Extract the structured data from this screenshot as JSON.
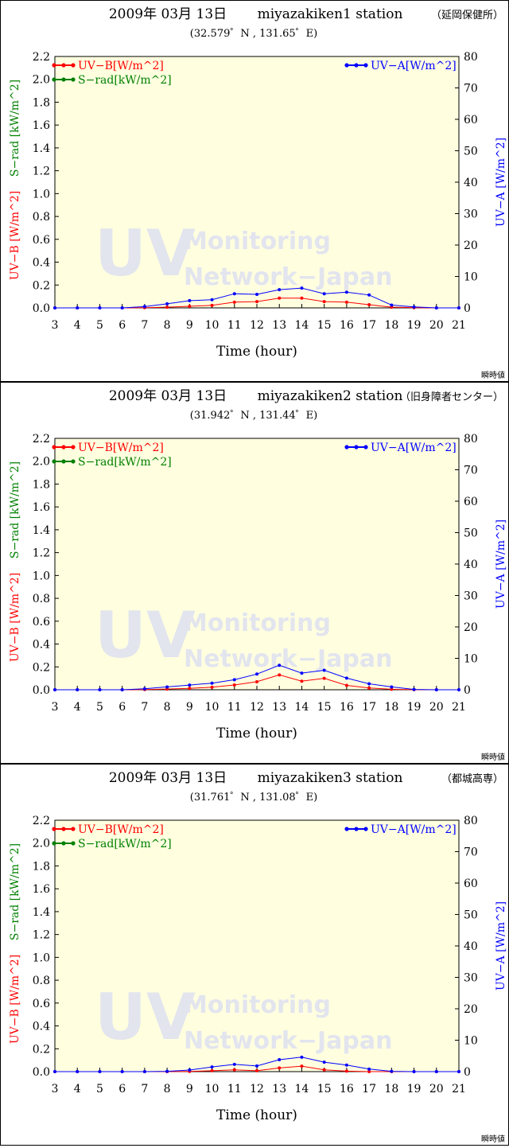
{
  "colors": {
    "plot_bg": "#ffffe0",
    "uvb": "#ff0000",
    "srad": "#008000",
    "uva": "#0000ff",
    "watermark": "#e2e4ee"
  },
  "chart_data": [
    {
      "type": "line",
      "title_date": "2009年 03月 13日",
      "title_station": "miyazakiken1 station",
      "title_place": "（延岡保健所）",
      "coords": "(32.579゜N , 131.65゜E)",
      "xlabel": "Time (hour)",
      "ylabel_left_uvb": "UV−B [W/m^2]",
      "ylabel_left_srad": "S−rad [kW/m^2]",
      "ylabel_right": "UV−A [W/m^2]",
      "x": [
        3,
        4,
        5,
        6,
        7,
        8,
        9,
        10,
        11,
        12,
        13,
        14,
        15,
        16,
        17,
        18,
        19,
        20,
        21
      ],
      "xlim": [
        3,
        21
      ],
      "ylim_left": [
        0,
        2.2
      ],
      "ylim_right": [
        0,
        80
      ],
      "left_ticks": [
        "0.0",
        "0.2",
        "0.4",
        "0.6",
        "0.8",
        "1.0",
        "1.2",
        "1.4",
        "1.6",
        "1.8",
        "2.0",
        "2.2"
      ],
      "right_ticks": [
        "0",
        "10",
        "20",
        "30",
        "40",
        "50",
        "60",
        "70",
        "80"
      ],
      "legend_uvb": "UV−B[W/m^2]",
      "legend_srad": "S−rad[kW/m^2]",
      "legend_uva": "UV−A[W/m^2]",
      "watermark_big": "UV",
      "watermark_line1": "Monitoring",
      "watermark_line2": "Network−Japan",
      "footnote": "瞬時値",
      "series": [
        {
          "name": "UV−B[W/m^2]",
          "axis": "left",
          "color": "#ff0000",
          "values": [
            0,
            0,
            0,
            0,
            0.002,
            0.006,
            0.014,
            0.022,
            0.05,
            0.055,
            0.085,
            0.085,
            0.055,
            0.05,
            0.028,
            0.006,
            0.002,
            0,
            0
          ]
        },
        {
          "name": "UV−A[W/m^2]",
          "axis": "right",
          "color": "#0000ff",
          "values": [
            0,
            0,
            0,
            0,
            0.4,
            1.3,
            2.3,
            2.6,
            4.5,
            4.3,
            5.8,
            6.3,
            4.5,
            5.0,
            4.1,
            0.9,
            0.3,
            0,
            0
          ]
        }
      ]
    },
    {
      "type": "line",
      "title_date": "2009年 03月 13日",
      "title_station": "miyazakiken2 station",
      "title_place": "（旧身障者センター）",
      "coords": "(31.942゜N , 131.44゜E)",
      "xlabel": "Time (hour)",
      "ylabel_left_uvb": "UV−B [W/m^2]",
      "ylabel_left_srad": "S−rad [kW/m^2]",
      "ylabel_right": "UV−A [W/m^2]",
      "x": [
        3,
        4,
        5,
        6,
        7,
        8,
        9,
        10,
        11,
        12,
        13,
        14,
        15,
        16,
        17,
        18,
        19,
        20,
        21
      ],
      "xlim": [
        3,
        21
      ],
      "ylim_left": [
        0,
        2.2
      ],
      "ylim_right": [
        0,
        80
      ],
      "left_ticks": [
        "0.0",
        "0.2",
        "0.4",
        "0.6",
        "0.8",
        "1.0",
        "1.2",
        "1.4",
        "1.6",
        "1.8",
        "2.0",
        "2.2"
      ],
      "right_ticks": [
        "0",
        "10",
        "20",
        "30",
        "40",
        "50",
        "60",
        "70",
        "80"
      ],
      "legend_uvb": "UV−B[W/m^2]",
      "legend_srad": "S−rad[kW/m^2]",
      "legend_uva": "UV−A[W/m^2]",
      "watermark_big": "UV",
      "watermark_line1": "Monitoring",
      "watermark_line2": "Network−Japan",
      "footnote": "瞬時値",
      "series": [
        {
          "name": "UV−B[W/m^2]",
          "axis": "left",
          "color": "#ff0000",
          "values": [
            0,
            0,
            0,
            0,
            0.002,
            0.006,
            0.012,
            0.022,
            0.042,
            0.07,
            0.13,
            0.075,
            0.1,
            0.038,
            0.015,
            0.004,
            0.001,
            0,
            0
          ]
        },
        {
          "name": "UV−A[W/m^2]",
          "axis": "right",
          "color": "#0000ff",
          "values": [
            0,
            0,
            0,
            0,
            0.3,
            0.9,
            1.5,
            2.1,
            3.2,
            5.0,
            7.8,
            5.3,
            6.2,
            3.7,
            1.9,
            0.9,
            0.1,
            0,
            0
          ]
        }
      ]
    },
    {
      "type": "line",
      "title_date": "2009年 03月 13日",
      "title_station": "miyazakiken3 station",
      "title_place": "（都城高専）",
      "coords": "(31.761゜N , 131.08゜E)",
      "xlabel": "Time (hour)",
      "ylabel_left_uvb": "UV−B [W/m^2]",
      "ylabel_left_srad": "S−rad [kW/m^2]",
      "ylabel_right": "UV−A [W/m^2]",
      "x": [
        3,
        4,
        5,
        6,
        7,
        8,
        9,
        10,
        11,
        12,
        13,
        14,
        15,
        16,
        17,
        18,
        19,
        20,
        21
      ],
      "xlim": [
        3,
        21
      ],
      "ylim_left": [
        0,
        2.2
      ],
      "ylim_right": [
        0,
        80
      ],
      "left_ticks": [
        "0.0",
        "0.2",
        "0.4",
        "0.6",
        "0.8",
        "1.0",
        "1.2",
        "1.4",
        "1.6",
        "1.8",
        "2.0",
        "2.2"
      ],
      "right_ticks": [
        "0",
        "10",
        "20",
        "30",
        "40",
        "50",
        "60",
        "70",
        "80"
      ],
      "legend_uvb": "UV−B[W/m^2]",
      "legend_srad": "S−rad[kW/m^2]",
      "legend_uva": "UV−A[W/m^2]",
      "watermark_big": "UV",
      "watermark_line1": "Monitoring",
      "watermark_line2": "Network−Japan",
      "footnote": "瞬時値",
      "series": [
        {
          "name": "UV−B[W/m^2]",
          "axis": "left",
          "color": "#ff0000",
          "values": [
            0,
            0,
            0,
            0,
            0,
            0,
            0.002,
            0.008,
            0.016,
            0.008,
            0.032,
            0.048,
            0.016,
            0.004,
            0,
            0,
            0,
            0,
            0
          ]
        },
        {
          "name": "UV−A[W/m^2]",
          "axis": "right",
          "color": "#0000ff",
          "values": [
            0,
            0,
            0,
            0,
            0,
            0.1,
            0.5,
            1.5,
            2.3,
            1.8,
            3.8,
            4.6,
            3.0,
            2.1,
            0.8,
            0.1,
            0,
            0,
            0
          ]
        }
      ]
    }
  ]
}
